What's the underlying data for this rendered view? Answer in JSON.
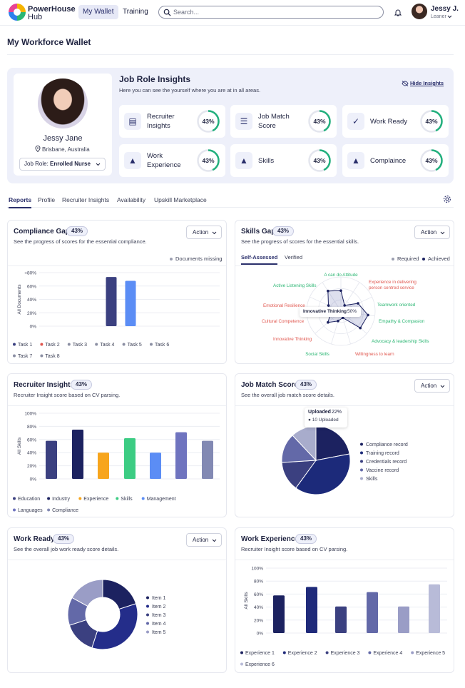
{
  "nav": {
    "brand_line1": "PowerHouse",
    "brand_line2": "Hub",
    "tab_wallet": "My Wallet",
    "tab_training": "Training",
    "search_placeholder": "Search...",
    "user_name": "Jessy J.",
    "user_role": "Leaner"
  },
  "page": {
    "title": "My Workforce Wallet"
  },
  "profile": {
    "name": "Jessy Jane",
    "location": "Brisbane, Australia",
    "job_role_label": "Job Role:",
    "job_role_value": "Enrolled Nurse"
  },
  "insights": {
    "title": "Job Role Insights",
    "subtitle": "Here you can see the yourself where you are at in all areas.",
    "hide_label": "Hide Insights",
    "cards": [
      {
        "line1": "Recruiter",
        "line2": "Insights",
        "value": "43%",
        "icon": "document-person-icon"
      },
      {
        "line1": "Job Match",
        "line2": "Score",
        "value": "43%",
        "icon": "checklist-icon"
      },
      {
        "line1": "Work Ready",
        "line2": "",
        "value": "43%",
        "icon": "check-circle-icon"
      },
      {
        "line1": "Work",
        "line2": "Experience",
        "value": "43%",
        "icon": "graduation-cap-icon"
      },
      {
        "line1": "Skills",
        "line2": "",
        "value": "43%",
        "icon": "graduation-cap-icon"
      },
      {
        "line1": "Complaince",
        "line2": "",
        "value": "43%",
        "icon": "graduation-cap-icon"
      }
    ],
    "progress": 0.43,
    "accent": "#22b07d"
  },
  "tabs": [
    "Reports",
    "Profile",
    "Recruiter Insights",
    "Availability",
    "Upskill Marketplace"
  ],
  "compliance": {
    "title": "Compliance Gap",
    "badge": "43%",
    "subtitle": "See the progress of scores for the essential compliance.",
    "action": "Action",
    "legend_note": "Documents missing",
    "legend": [
      "Task 1",
      "Task 2",
      "Task 3",
      "Task 4",
      "Task 5",
      "Task 6",
      "Task 7",
      "Task 8"
    ],
    "legend_colors": [
      "#3b4080",
      "#e0574f",
      "#8b8fa3",
      "#8b8fa3",
      "#8b8fa3",
      "#8b8fa3",
      "#8b8fa3",
      "#8b8fa3"
    ]
  },
  "skills_gap": {
    "title": "Skills Gap",
    "badge": "43%",
    "subtitle": "See the progress of scores for the essential skills.",
    "action": "Action",
    "tab1": "Self-Assessed",
    "tab2": "Verified",
    "legend_required": "Required",
    "legend_achieved": "Achieved",
    "tooltip_label": "Innovative Thinking",
    "tooltip_value": "50%",
    "labels": [
      {
        "text": "A can do Attitude",
        "color": "#2bb673"
      },
      {
        "text": "Experience in delivering",
        "color": "#e0574f"
      },
      {
        "text": "person centred service",
        "color": "#e0574f"
      },
      {
        "text": "Teamwork oriented",
        "color": "#2bb673"
      },
      {
        "text": "Empathy & Compasion",
        "color": "#2bb673"
      },
      {
        "text": "Advocacy & leadership Skills",
        "color": "#2bb673"
      },
      {
        "text": "Willingness to learn",
        "color": "#e0574f"
      },
      {
        "text": "Social Skills",
        "color": "#2bb673"
      },
      {
        "text": "Innovative Thinking",
        "color": "#e0574f"
      },
      {
        "text": "Cultural Competence",
        "color": "#e0574f"
      },
      {
        "text": "Emotional Resilience",
        "color": "#e0574f"
      },
      {
        "text": "Active Listening Skills",
        "color": "#2bb673"
      }
    ]
  },
  "recruiter": {
    "title": "Recruiter Insights",
    "badge": "43%",
    "subtitle": "Recruiter Insight score based on CV parsing.",
    "legend": [
      "Education",
      "Industry",
      "Experience",
      "Skills",
      "Management",
      "Languages",
      "Compliance"
    ]
  },
  "job_match": {
    "title": "Job Match Score",
    "badge": "43%",
    "subtitle": "See the overall job match score details.",
    "action": "Action",
    "tooltip_title": "Uploaded",
    "tooltip_value": "22%",
    "tooltip_detail": "10 Uploaded",
    "legend": [
      "Compliance record",
      "Training record",
      "Credentials record",
      "Vaccine record",
      "Skills"
    ]
  },
  "work_ready": {
    "title": "Work Ready",
    "badge": "43%",
    "subtitle": "See the overall job work ready score details.",
    "action": "Action",
    "legend": [
      "Item 1",
      "Item 2",
      "Item 3",
      "Item 4",
      "Item 5"
    ]
  },
  "work_exp": {
    "title": "Work Experience",
    "badge": "43%",
    "subtitle": "Recruiter Insight score based on CV parsing.",
    "legend": [
      "Experience 1",
      "Experience 2",
      "Experience 3",
      "Experience 4",
      "Experience 5",
      "Experience 6"
    ]
  },
  "chart_data": [
    {
      "type": "bar",
      "title": "Compliance Gap",
      "ylabel": "All Documents",
      "yticks": [
        "+80%",
        "60%",
        "40%",
        "20%",
        "0%"
      ],
      "categories": [
        "Task 1",
        "Task 2"
      ],
      "values": [
        78,
        72
      ],
      "colors": [
        "#3b4080",
        "#5b8df5"
      ],
      "ylim": [
        0,
        85
      ]
    },
    {
      "type": "bar",
      "title": "Recruiter Insights",
      "ylabel": "All Skills",
      "yticks": [
        "100%",
        "80%",
        "60%",
        "40%",
        "20%",
        "0%"
      ],
      "categories": [
        "Education",
        "Industry",
        "Experience",
        "Skills",
        "Management",
        "Languages",
        "Compliance"
      ],
      "values": [
        58,
        75,
        40,
        62,
        40,
        71,
        58
      ],
      "colors": [
        "#3b4080",
        "#1c2260",
        "#f7a51c",
        "#3ccc83",
        "#5b8df5",
        "#6f74bf",
        "#8289b3"
      ],
      "ylim": [
        0,
        100
      ]
    },
    {
      "type": "pie",
      "title": "Job Match Score",
      "categories": [
        "Compliance record",
        "Training record",
        "Credentials record",
        "Vaccine record",
        "Skills"
      ],
      "values": [
        22,
        38,
        14,
        14,
        12
      ],
      "colors": [
        "#1c2260",
        "#1c2a7a",
        "#3b4080",
        "#6369a8",
        "#a8accc"
      ]
    },
    {
      "type": "pie",
      "title": "Work Ready",
      "categories": [
        "Item 1",
        "Item 2",
        "Item 3",
        "Item 4",
        "Item 5"
      ],
      "values": [
        20,
        35,
        15,
        13,
        17
      ],
      "colors": [
        "#1c2260",
        "#242d8a",
        "#3b4080",
        "#6369a8",
        "#9a9dc6"
      ]
    },
    {
      "type": "bar",
      "title": "Work Experience",
      "ylabel": "All Skills",
      "yticks": [
        "100%",
        "80%",
        "60%",
        "40%",
        "20%",
        "0%"
      ],
      "categories": [
        "Experience 1",
        "Experience 2",
        "Experience 3",
        "Experience 4",
        "Experience 5",
        "Experience 6"
      ],
      "values": [
        58,
        71,
        41,
        63,
        41,
        75
      ],
      "colors": [
        "#1c2260",
        "#1f2a7a",
        "#3b4080",
        "#6369a8",
        "#9a9dc6",
        "#b8bbd8"
      ],
      "ylim": [
        0,
        100
      ]
    },
    {
      "type": "radar",
      "title": "Skills Gap",
      "categories": [
        "A can do Attitude",
        "Experience in delivering person centred service",
        "Teamwork oriented",
        "Empathy & Compasion",
        "Advocacy & leadership Skills",
        "Willingness to learn",
        "Social Skills",
        "Innovative Thinking",
        "Cultural Competence",
        "Emotional Resilience",
        "Active Listening Skills"
      ],
      "series": [
        {
          "name": "Achieved",
          "values": [
            0.6,
            0.2,
            0.55,
            0.8,
            0.75,
            0.2,
            0.3,
            0.5,
            0.3,
            0.4,
            0.7
          ]
        }
      ]
    }
  ]
}
